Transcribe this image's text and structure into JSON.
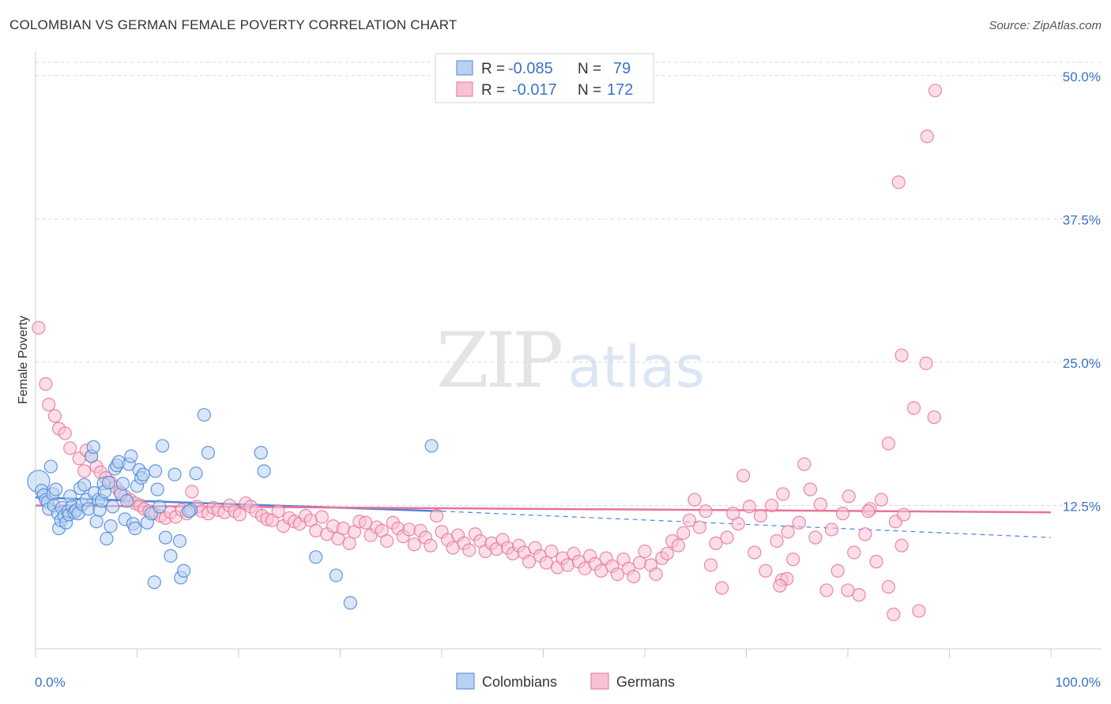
{
  "header": {
    "title": "COLOMBIAN VS GERMAN FEMALE POVERTY CORRELATION CHART",
    "source": "Source: ZipAtlas.com"
  },
  "watermark": {
    "zip": "ZIP",
    "atlas": "atlas"
  },
  "colors": {
    "blue": "#4a86d8",
    "blue_fill": "#b9d1f2",
    "pink": "#e8739a",
    "pink_fill": "#f7c3d3",
    "tick_label": "#3a72c6",
    "grid": "#d9d9d9"
  },
  "legend_box": {
    "rows": [
      {
        "r_label": "R =",
        "r_value": "-0.085",
        "n_label": "N =",
        "n_value": "79"
      },
      {
        "r_label": "R =",
        "r_value": "-0.017",
        "n_label": "N =",
        "n_value": "172"
      }
    ]
  },
  "chart_data": {
    "type": "scatter",
    "title": "COLOMBIAN VS GERMAN FEMALE POVERTY CORRELATION CHART",
    "xlabel": "",
    "ylabel": "Female Poverty",
    "x_tick_labels": [
      "0.0%",
      "100.0%"
    ],
    "y_tick_labels": [
      "12.5%",
      "25.0%",
      "37.5%",
      "50.0%"
    ],
    "y_ticks": [
      12.5,
      25.0,
      37.5,
      50.0
    ],
    "xlim": [
      0,
      100
    ],
    "ylim": [
      0,
      51.5
    ],
    "grid": "horizontal dashed",
    "legend_position": "bottom-center",
    "series": [
      {
        "name": "Colombians",
        "color": "#4a86d8",
        "R": -0.085,
        "N": 79,
        "trend": {
          "x0": 0,
          "y0": 13.2,
          "x1": 40,
          "y1": 12.0,
          "dashed_to_x": 100,
          "dashed_to_y": 9.7
        },
        "points": [
          [
            0.3,
            14.6
          ],
          [
            0.6,
            13.8
          ],
          [
            0.8,
            13.4
          ],
          [
            1.0,
            13.0
          ],
          [
            1.2,
            12.8
          ],
          [
            1.3,
            12.2
          ],
          [
            1.5,
            15.9
          ],
          [
            1.7,
            13.5
          ],
          [
            1.8,
            12.5
          ],
          [
            2.0,
            13.9
          ],
          [
            2.2,
            11.8
          ],
          [
            2.3,
            10.5
          ],
          [
            2.5,
            11.2
          ],
          [
            2.6,
            12.3
          ],
          [
            2.8,
            11.6
          ],
          [
            3.0,
            11.0
          ],
          [
            3.2,
            12.0
          ],
          [
            3.3,
            11.7
          ],
          [
            3.4,
            13.3
          ],
          [
            3.6,
            12.4
          ],
          [
            3.8,
            11.9
          ],
          [
            4.0,
            12.1
          ],
          [
            4.2,
            11.8
          ],
          [
            4.4,
            14.0
          ],
          [
            4.6,
            12.6
          ],
          [
            4.8,
            14.3
          ],
          [
            5.0,
            13.0
          ],
          [
            5.2,
            12.2
          ],
          [
            5.5,
            16.8
          ],
          [
            5.7,
            17.6
          ],
          [
            5.8,
            13.6
          ],
          [
            6.0,
            11.1
          ],
          [
            6.2,
            13.0
          ],
          [
            6.3,
            12.1
          ],
          [
            6.5,
            12.9
          ],
          [
            6.7,
            14.4
          ],
          [
            6.8,
            13.7
          ],
          [
            7.0,
            9.6
          ],
          [
            7.2,
            14.5
          ],
          [
            7.4,
            10.7
          ],
          [
            7.6,
            12.4
          ],
          [
            7.8,
            15.7
          ],
          [
            8.0,
            16.0
          ],
          [
            8.2,
            16.3
          ],
          [
            8.4,
            13.5
          ],
          [
            8.6,
            14.4
          ],
          [
            8.8,
            11.3
          ],
          [
            9.0,
            12.9
          ],
          [
            9.2,
            16.1
          ],
          [
            9.4,
            16.8
          ],
          [
            9.6,
            10.9
          ],
          [
            9.8,
            10.5
          ],
          [
            10.0,
            14.2
          ],
          [
            10.2,
            15.6
          ],
          [
            10.4,
            14.9
          ],
          [
            10.6,
            15.2
          ],
          [
            11.0,
            11.0
          ],
          [
            11.4,
            11.8
          ],
          [
            11.8,
            15.5
          ],
          [
            12.0,
            13.9
          ],
          [
            12.2,
            12.4
          ],
          [
            12.5,
            17.7
          ],
          [
            11.7,
            5.8
          ],
          [
            13.3,
            8.1
          ],
          [
            13.7,
            15.2
          ],
          [
            14.3,
            6.2
          ],
          [
            14.6,
            6.8
          ],
          [
            14.2,
            9.4
          ],
          [
            12.8,
            9.7
          ],
          [
            15.3,
            12.1
          ],
          [
            15.8,
            15.3
          ],
          [
            16.6,
            20.4
          ],
          [
            15.1,
            12.0
          ],
          [
            17.0,
            17.1
          ],
          [
            22.2,
            17.1
          ],
          [
            22.5,
            15.5
          ],
          [
            27.6,
            8.0
          ],
          [
            29.6,
            6.4
          ],
          [
            31.0,
            4.0
          ],
          [
            39.0,
            17.7
          ]
        ]
      },
      {
        "name": "Germans",
        "color": "#e8739a",
        "R": -0.017,
        "N": 172,
        "trend": {
          "x0": 0,
          "y0": 12.5,
          "x1": 100,
          "y1": 11.9
        },
        "points": [
          [
            0.3,
            28.0
          ],
          [
            1.0,
            23.1
          ],
          [
            1.3,
            21.3
          ],
          [
            1.9,
            20.3
          ],
          [
            2.3,
            19.2
          ],
          [
            2.9,
            18.8
          ],
          [
            3.4,
            17.5
          ],
          [
            4.3,
            16.6
          ],
          [
            4.8,
            15.5
          ],
          [
            5.0,
            17.3
          ],
          [
            5.5,
            16.8
          ],
          [
            6.0,
            15.9
          ],
          [
            6.4,
            15.4
          ],
          [
            6.9,
            14.9
          ],
          [
            7.4,
            14.5
          ],
          [
            7.9,
            14.1
          ],
          [
            8.3,
            13.7
          ],
          [
            8.8,
            13.3
          ],
          [
            9.3,
            13.0
          ],
          [
            9.8,
            12.7
          ],
          [
            10.3,
            12.5
          ],
          [
            10.7,
            12.2
          ],
          [
            11.2,
            12.0
          ],
          [
            11.7,
            11.8
          ],
          [
            12.3,
            11.6
          ],
          [
            12.8,
            11.4
          ],
          [
            13.3,
            11.9
          ],
          [
            13.8,
            11.5
          ],
          [
            14.4,
            12.1
          ],
          [
            14.9,
            11.8
          ],
          [
            15.4,
            13.7
          ],
          [
            15.9,
            12.4
          ],
          [
            16.4,
            12.0
          ],
          [
            17.0,
            11.8
          ],
          [
            17.5,
            12.3
          ],
          [
            18.0,
            12.1
          ],
          [
            18.6,
            11.9
          ],
          [
            19.1,
            12.5
          ],
          [
            19.6,
            12.0
          ],
          [
            20.1,
            11.7
          ],
          [
            20.7,
            12.7
          ],
          [
            21.2,
            12.4
          ],
          [
            21.7,
            12.0
          ],
          [
            22.3,
            11.6
          ],
          [
            22.8,
            11.3
          ],
          [
            23.3,
            11.2
          ],
          [
            23.9,
            12.0
          ],
          [
            24.4,
            10.7
          ],
          [
            25.0,
            11.4
          ],
          [
            25.5,
            11.1
          ],
          [
            26.0,
            10.9
          ],
          [
            26.6,
            11.6
          ],
          [
            27.1,
            11.2
          ],
          [
            27.6,
            10.3
          ],
          [
            28.2,
            11.5
          ],
          [
            28.7,
            10.0
          ],
          [
            29.3,
            10.7
          ],
          [
            29.8,
            9.6
          ],
          [
            30.3,
            10.5
          ],
          [
            30.9,
            9.2
          ],
          [
            31.4,
            10.2
          ],
          [
            31.9,
            11.1
          ],
          [
            32.5,
            11.0
          ],
          [
            33.0,
            9.9
          ],
          [
            33.6,
            10.6
          ],
          [
            34.1,
            10.3
          ],
          [
            34.6,
            9.4
          ],
          [
            35.2,
            11.0
          ],
          [
            35.7,
            10.5
          ],
          [
            36.2,
            9.8
          ],
          [
            36.8,
            10.4
          ],
          [
            37.3,
            9.1
          ],
          [
            37.9,
            10.3
          ],
          [
            38.4,
            9.7
          ],
          [
            38.9,
            9.0
          ],
          [
            39.5,
            11.6
          ],
          [
            40.0,
            10.2
          ],
          [
            40.6,
            9.5
          ],
          [
            41.1,
            8.8
          ],
          [
            41.6,
            9.9
          ],
          [
            42.2,
            9.2
          ],
          [
            42.7,
            8.6
          ],
          [
            43.3,
            10.0
          ],
          [
            43.8,
            9.4
          ],
          [
            44.3,
            8.5
          ],
          [
            44.9,
            9.2
          ],
          [
            45.4,
            8.7
          ],
          [
            46.0,
            9.5
          ],
          [
            46.5,
            8.8
          ],
          [
            47.0,
            8.3
          ],
          [
            47.6,
            9.0
          ],
          [
            48.1,
            8.4
          ],
          [
            48.6,
            7.6
          ],
          [
            49.2,
            8.8
          ],
          [
            49.7,
            8.1
          ],
          [
            50.3,
            7.5
          ],
          [
            50.8,
            8.5
          ],
          [
            51.4,
            7.1
          ],
          [
            51.9,
            7.9
          ],
          [
            52.4,
            7.3
          ],
          [
            53.0,
            8.3
          ],
          [
            53.5,
            7.6
          ],
          [
            54.1,
            7.0
          ],
          [
            54.6,
            8.1
          ],
          [
            55.1,
            7.4
          ],
          [
            55.7,
            6.8
          ],
          [
            56.2,
            7.9
          ],
          [
            56.8,
            7.2
          ],
          [
            57.3,
            6.5
          ],
          [
            57.9,
            7.8
          ],
          [
            58.4,
            7.0
          ],
          [
            58.9,
            6.3
          ],
          [
            59.5,
            7.5
          ],
          [
            60.0,
            8.5
          ],
          [
            60.6,
            7.3
          ],
          [
            61.1,
            6.5
          ],
          [
            61.7,
            7.9
          ],
          [
            62.2,
            8.3
          ],
          [
            62.7,
            9.4
          ],
          [
            63.3,
            9.0
          ],
          [
            63.8,
            10.1
          ],
          [
            64.4,
            11.2
          ],
          [
            64.9,
            13.0
          ],
          [
            65.4,
            10.6
          ],
          [
            66.0,
            12.0
          ],
          [
            66.5,
            7.3
          ],
          [
            67.0,
            9.2
          ],
          [
            67.6,
            5.3
          ],
          [
            68.1,
            9.7
          ],
          [
            68.7,
            11.8
          ],
          [
            69.2,
            10.9
          ],
          [
            69.7,
            15.1
          ],
          [
            70.3,
            12.4
          ],
          [
            70.8,
            8.4
          ],
          [
            71.4,
            11.6
          ],
          [
            71.9,
            6.8
          ],
          [
            72.5,
            12.5
          ],
          [
            73.0,
            9.4
          ],
          [
            73.6,
            13.5
          ],
          [
            74.1,
            10.2
          ],
          [
            74.6,
            7.8
          ],
          [
            75.2,
            11.0
          ],
          [
            75.7,
            16.1
          ],
          [
            76.3,
            13.9
          ],
          [
            76.8,
            9.7
          ],
          [
            77.3,
            12.6
          ],
          [
            77.9,
            5.1
          ],
          [
            78.4,
            10.4
          ],
          [
            79.0,
            6.8
          ],
          [
            79.5,
            11.8
          ],
          [
            80.1,
            13.3
          ],
          [
            80.6,
            8.4
          ],
          [
            81.1,
            4.7
          ],
          [
            81.7,
            10.0
          ],
          [
            82.2,
            12.2
          ],
          [
            82.8,
            7.6
          ],
          [
            83.3,
            13.0
          ],
          [
            84.0,
            5.4
          ],
          [
            84.7,
            11.1
          ],
          [
            85.3,
            9.0
          ],
          [
            73.5,
            6.0
          ],
          [
            74.0,
            6.1
          ],
          [
            73.3,
            5.5
          ],
          [
            80.0,
            5.1
          ],
          [
            84.5,
            3.0
          ],
          [
            82.0,
            12.0
          ],
          [
            85.5,
            11.7
          ],
          [
            84.0,
            17.9
          ],
          [
            86.5,
            21.0
          ],
          [
            88.5,
            20.2
          ],
          [
            85.3,
            25.6
          ],
          [
            87.7,
            24.9
          ],
          [
            85.0,
            40.7
          ],
          [
            87.8,
            44.7
          ],
          [
            88.6,
            48.7
          ],
          [
            87.0,
            3.3
          ]
        ]
      }
    ]
  }
}
